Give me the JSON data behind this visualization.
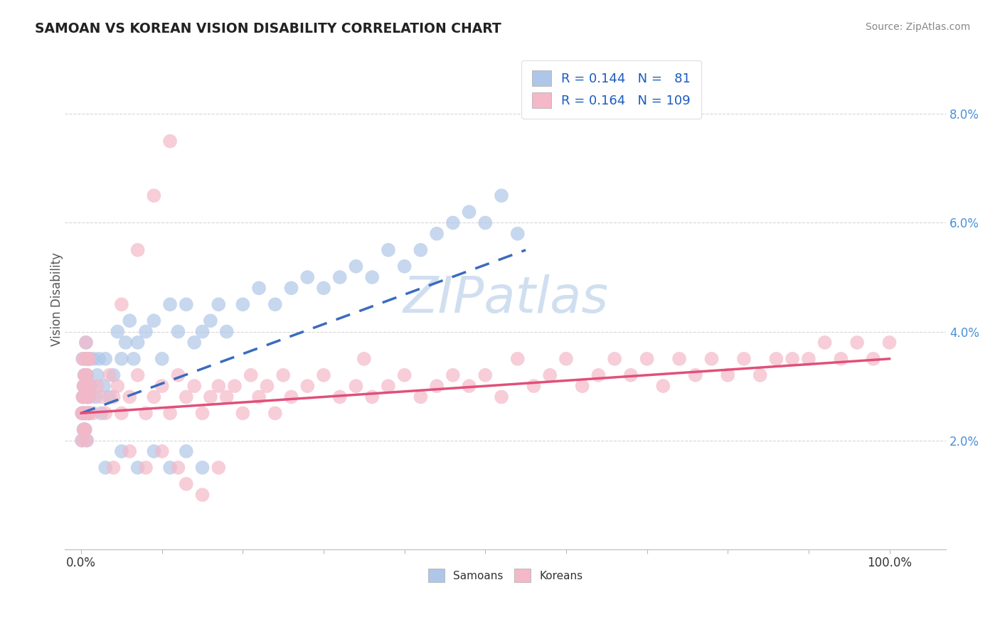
{
  "title": "SAMOAN VS KOREAN VISION DISABILITY CORRELATION CHART",
  "source": "Source: ZipAtlas.com",
  "ylabel": "Vision Disability",
  "samoan_R": "0.144",
  "samoan_N": "81",
  "korean_R": "0.164",
  "korean_N": "109",
  "samoan_color": "#aec6e8",
  "korean_color": "#f4b8c8",
  "samoan_line_color": "#3a6bbf",
  "korean_line_color": "#e0507a",
  "background_color": "#ffffff",
  "watermark": "ZIPatlas",
  "samoan_x": [
    0.1,
    0.2,
    0.3,
    0.4,
    0.5,
    0.6,
    0.7,
    0.8,
    0.9,
    1.0,
    0.1,
    0.2,
    0.3,
    0.4,
    0.5,
    0.6,
    0.7,
    0.8,
    0.9,
    1.0,
    0.2,
    0.3,
    0.4,
    0.5,
    0.6,
    0.7,
    0.8,
    0.9,
    1.0,
    1.2,
    1.5,
    1.8,
    2.0,
    2.2,
    2.5,
    2.8,
    3.0,
    3.5,
    4.0,
    4.5,
    5.0,
    5.5,
    6.0,
    6.5,
    7.0,
    8.0,
    9.0,
    10.0,
    11.0,
    12.0,
    13.0,
    14.0,
    15.0,
    16.0,
    17.0,
    18.0,
    20.0,
    22.0,
    24.0,
    26.0,
    28.0,
    30.0,
    32.0,
    34.0,
    36.0,
    38.0,
    40.0,
    42.0,
    44.0,
    46.0,
    48.0,
    50.0,
    52.0,
    54.0,
    3.0,
    5.0,
    7.0,
    9.0,
    11.0,
    13.0,
    15.0
  ],
  "samoan_y": [
    2.5,
    2.8,
    2.2,
    3.0,
    2.5,
    3.2,
    2.0,
    2.8,
    2.5,
    3.5,
    2.0,
    2.5,
    2.8,
    3.2,
    2.2,
    3.5,
    2.8,
    3.0,
    2.5,
    2.8,
    3.5,
    3.0,
    2.2,
    2.5,
    3.8,
    3.2,
    2.8,
    3.5,
    2.5,
    3.0,
    3.5,
    2.8,
    3.2,
    3.5,
    2.5,
    3.0,
    3.5,
    2.8,
    3.2,
    4.0,
    3.5,
    3.8,
    4.2,
    3.5,
    3.8,
    4.0,
    4.2,
    3.5,
    4.5,
    4.0,
    4.5,
    3.8,
    4.0,
    4.2,
    4.5,
    4.0,
    4.5,
    4.8,
    4.5,
    4.8,
    5.0,
    4.8,
    5.0,
    5.2,
    5.0,
    5.5,
    5.2,
    5.5,
    5.8,
    6.0,
    6.2,
    6.0,
    6.5,
    5.8,
    1.5,
    1.8,
    1.5,
    1.8,
    1.5,
    1.8,
    1.5
  ],
  "korean_x": [
    0.1,
    0.2,
    0.3,
    0.4,
    0.5,
    0.6,
    0.7,
    0.8,
    0.9,
    1.0,
    0.1,
    0.2,
    0.3,
    0.4,
    0.5,
    0.6,
    0.7,
    0.8,
    0.9,
    1.0,
    0.2,
    0.3,
    0.4,
    0.5,
    0.6,
    0.7,
    0.8,
    0.9,
    1.0,
    1.2,
    1.5,
    2.0,
    2.5,
    3.0,
    3.5,
    4.0,
    4.5,
    5.0,
    6.0,
    7.0,
    8.0,
    9.0,
    10.0,
    11.0,
    12.0,
    13.0,
    14.0,
    15.0,
    16.0,
    17.0,
    18.0,
    19.0,
    20.0,
    21.0,
    22.0,
    23.0,
    24.0,
    25.0,
    26.0,
    28.0,
    30.0,
    32.0,
    34.0,
    35.0,
    36.0,
    38.0,
    40.0,
    42.0,
    44.0,
    46.0,
    48.0,
    50.0,
    52.0,
    54.0,
    56.0,
    58.0,
    60.0,
    62.0,
    64.0,
    66.0,
    68.0,
    70.0,
    72.0,
    74.0,
    76.0,
    78.0,
    80.0,
    82.0,
    84.0,
    86.0,
    88.0,
    90.0,
    92.0,
    94.0,
    96.0,
    98.0,
    100.0,
    4.0,
    6.0,
    8.0,
    10.0,
    12.0,
    5.0,
    7.0,
    9.0,
    11.0,
    13.0,
    15.0,
    17.0
  ],
  "korean_y": [
    2.5,
    2.8,
    2.2,
    3.0,
    2.5,
    3.2,
    2.0,
    2.8,
    2.5,
    3.5,
    2.0,
    2.5,
    2.8,
    3.2,
    2.2,
    3.5,
    2.8,
    3.0,
    2.5,
    2.8,
    3.5,
    3.0,
    2.2,
    2.5,
    3.8,
    3.2,
    2.8,
    3.5,
    2.5,
    3.0,
    2.5,
    3.0,
    2.8,
    2.5,
    3.2,
    2.8,
    3.0,
    2.5,
    2.8,
    3.2,
    2.5,
    2.8,
    3.0,
    2.5,
    3.2,
    2.8,
    3.0,
    2.5,
    2.8,
    3.0,
    2.8,
    3.0,
    2.5,
    3.2,
    2.8,
    3.0,
    2.5,
    3.2,
    2.8,
    3.0,
    3.2,
    2.8,
    3.0,
    3.5,
    2.8,
    3.0,
    3.2,
    2.8,
    3.0,
    3.2,
    3.0,
    3.2,
    2.8,
    3.5,
    3.0,
    3.2,
    3.5,
    3.0,
    3.2,
    3.5,
    3.2,
    3.5,
    3.0,
    3.5,
    3.2,
    3.5,
    3.2,
    3.5,
    3.2,
    3.5,
    3.5,
    3.5,
    3.8,
    3.5,
    3.8,
    3.5,
    3.8,
    1.5,
    1.8,
    1.5,
    1.8,
    1.5,
    4.5,
    5.5,
    6.5,
    7.5,
    1.2,
    1.0,
    1.5
  ],
  "xlim": [
    -2,
    107
  ],
  "ylim": [
    0.0,
    9.2
  ],
  "yticks": [
    2.0,
    4.0,
    6.0,
    8.0
  ],
  "ytick_labels": [
    "2.0%",
    "4.0%",
    "6.0%",
    "8.0%"
  ]
}
